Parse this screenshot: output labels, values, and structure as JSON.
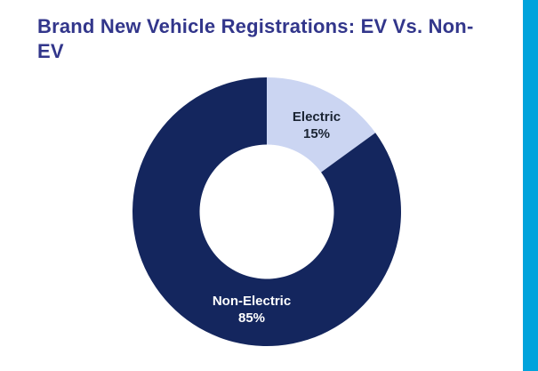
{
  "page": {
    "title": "Brand New Vehicle Registrations: EV Vs. Non-EV"
  },
  "colors": {
    "background": "#FFFFFF",
    "title_text": "#32368B",
    "accent_bar": "#00A3DC"
  },
  "chart_data": {
    "type": "pie",
    "subtype": "donut",
    "title": "Brand New Vehicle Registrations: EV Vs. Non-EV",
    "categories": [
      "Electric",
      "Non-Electric"
    ],
    "values": [
      15,
      85
    ],
    "unit": "%",
    "colors": [
      "#CBD5F2",
      "#14265E"
    ],
    "label_colors": [
      "#1A2433",
      "#FFFFFF"
    ],
    "start_angle_deg": 0,
    "direction": "clockwise",
    "donut_hole_ratio": 0.5,
    "legend_position": "none",
    "labels": [
      {
        "name": "Electric",
        "value": "15%"
      },
      {
        "name": "Non-Electric",
        "value": "85%"
      }
    ]
  }
}
